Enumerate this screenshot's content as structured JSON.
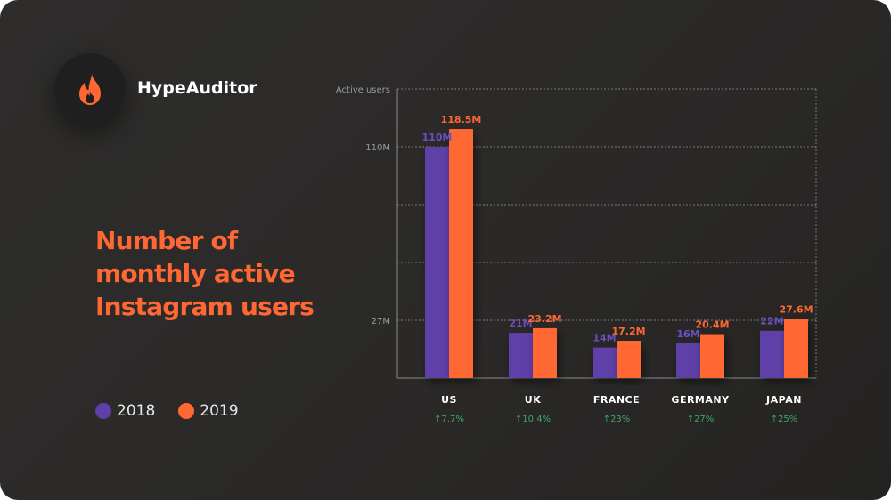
{
  "brand": {
    "name": "HypeAuditor",
    "logo_icon": "flame-icon"
  },
  "headline": "Number of monthly active Instagram users",
  "colors": {
    "series_2018": "#5e3fa8",
    "series_2019": "#ff6733",
    "accent": "#ff6733",
    "growth": "#3ea866"
  },
  "legend": [
    {
      "label": "2018",
      "color": "#5e3fa8"
    },
    {
      "label": "2019",
      "color": "#ff6733"
    }
  ],
  "chart_data": {
    "type": "bar",
    "ylabel": "Active users",
    "yticks": [
      {
        "value": 27,
        "label": "27M"
      },
      {
        "value": 110,
        "label": "110M"
      }
    ],
    "ylim": [
      0,
      137
    ],
    "grid": true,
    "categories": [
      "US",
      "UK",
      "FRANCE",
      "GERMANY",
      "JAPAN"
    ],
    "series": [
      {
        "name": "2018",
        "values": [
          110,
          21,
          14,
          16,
          22
        ],
        "labels": [
          "110M",
          "21M",
          "14M",
          "16M",
          "22M"
        ]
      },
      {
        "name": "2019",
        "values": [
          118.5,
          23.2,
          17.2,
          20.4,
          27.6
        ],
        "labels": [
          "118.5M",
          "23.2M",
          "17.2M",
          "20.4M",
          "27.6M"
        ]
      }
    ],
    "growth": [
      "7.7%",
      "10.4%",
      "23%",
      "27%",
      "25%"
    ]
  }
}
